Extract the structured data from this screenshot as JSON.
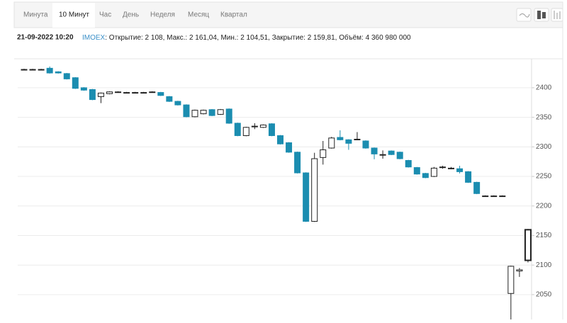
{
  "tabs": [
    "Минута",
    "10 Минут",
    "Час",
    "День",
    "Неделя",
    "Месяц",
    "Квартал"
  ],
  "info": {
    "date": "21-09-2022 10:20",
    "ticker": "IMOEX",
    "details": ": Открытие: 2 108, Макс.: 2 161,04, Мин.: 2 104,51, Закрытие: 2 159,81, Объём: 4 360 980 000"
  },
  "chart_data": {
    "type": "candlestick",
    "open": [
      2431,
      2431,
      2431,
      2433,
      2427,
      2424,
      2417,
      2400,
      2397,
      2385,
      2390,
      2393,
      2392,
      2392,
      2392,
      2393,
      2392,
      2385,
      2377,
      2371,
      2351,
      2356,
      2363,
      2355,
      2364,
      2340,
      2319,
      2335,
      2333,
      2339,
      2319,
      2307,
      2291,
      2256,
      2174,
      2282,
      2298,
      2316,
      2312,
      2313,
      2310,
      2298,
      2287,
      2293,
      2291,
      2277,
      2265,
      2255,
      2250,
      2266,
      2264,
      2263,
      2258,
      2240,
      2217,
      2217,
      2217,
      2052,
      2090,
      2108
    ],
    "high": [
      2432,
      2432,
      2432,
      2436,
      2428,
      2425,
      2418,
      2401,
      2398,
      2392,
      2394,
      2394,
      2393,
      2393,
      2393,
      2394,
      2393,
      2386,
      2378,
      2372,
      2363,
      2363,
      2364,
      2364,
      2365,
      2341,
      2334,
      2340,
      2338,
      2340,
      2320,
      2308,
      2292,
      2257,
      2290,
      2310,
      2317,
      2328,
      2313,
      2325,
      2311,
      2299,
      2294,
      2294,
      2292,
      2278,
      2266,
      2256,
      2266,
      2268,
      2266,
      2268,
      2259,
      2241,
      2218,
      2218,
      2218,
      2099,
      2095,
      2161.04
    ],
    "low": [
      2430,
      2430,
      2430,
      2424,
      2424,
      2414,
      2398,
      2395,
      2379,
      2374,
      2389,
      2392,
      2391,
      2391,
      2391,
      2392,
      2386,
      2376,
      2370,
      2350,
      2350,
      2355,
      2352,
      2354,
      2339,
      2318,
      2318,
      2330,
      2332,
      2318,
      2304,
      2290,
      2255,
      2173,
      2173,
      2270,
      2297,
      2311,
      2295,
      2312,
      2297,
      2279,
      2280,
      2286,
      2279,
      2265,
      2253,
      2247,
      2249,
      2263,
      2262,
      2255,
      2239,
      2220,
      2216,
      2216,
      2216,
      2008,
      2080,
      2104.51
    ],
    "close": [
      2431,
      2431,
      2431,
      2425,
      2425,
      2415,
      2399,
      2396,
      2380,
      2391,
      2393,
      2393,
      2392,
      2392,
      2392,
      2393,
      2387,
      2377,
      2371,
      2351,
      2362,
      2362,
      2353,
      2363,
      2340,
      2319,
      2333,
      2335,
      2337,
      2319,
      2305,
      2291,
      2256,
      2174,
      2280,
      2295,
      2315,
      2312,
      2306,
      2313,
      2298,
      2288,
      2287,
      2287,
      2280,
      2266,
      2254,
      2248,
      2264,
      2266,
      2264,
      2258,
      2240,
      2221,
      2217,
      2217,
      2217,
      2098,
      2092,
      2159.81
    ],
    "up_color": "#ffffff",
    "down_color": "#1b8db0",
    "ylim": [
      2008,
      2449
    ],
    "yticks": [
      2050,
      2100,
      2150,
      2200,
      2250,
      2300,
      2350,
      2400
    ],
    "grid": true
  }
}
